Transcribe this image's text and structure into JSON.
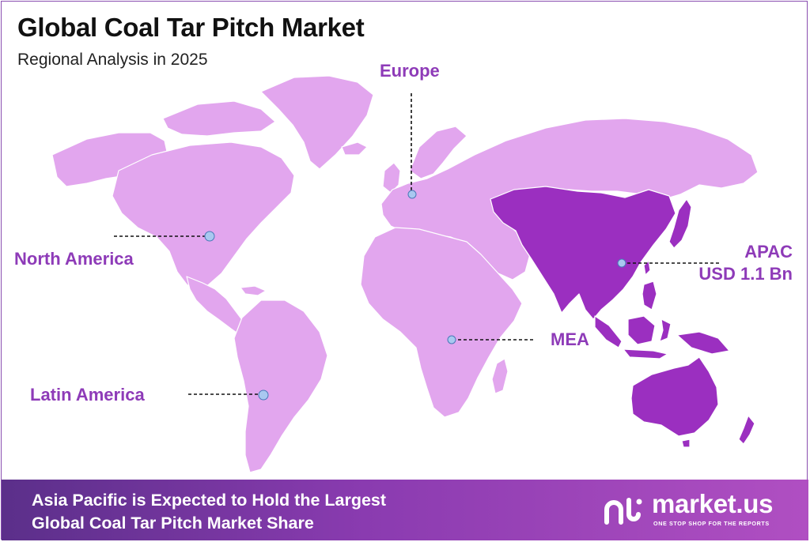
{
  "header": {
    "title": "Global Coal Tar Pitch Market",
    "subtitle": "Regional Analysis in 2025"
  },
  "regions": [
    {
      "id": "north-america",
      "label": "North America",
      "highlighted": false
    },
    {
      "id": "europe",
      "label": "Europe",
      "highlighted": false
    },
    {
      "id": "apac",
      "label": "APAC",
      "value": "USD 1.1 Bn",
      "highlighted": true
    },
    {
      "id": "mea",
      "label": "MEA",
      "highlighted": false
    },
    {
      "id": "latin-america",
      "label": "Latin America",
      "highlighted": false
    }
  ],
  "colors": {
    "land": "#e2a6ee",
    "highlight": "#9b2fc0",
    "label": "#8e3bb8",
    "marker": "#a9c8f0",
    "banner_start": "#5b2f8a",
    "banner_end": "#b04fc2"
  },
  "footer": {
    "line1": "Asia Pacific is Expected to Hold the Largest",
    "line2": "Global Coal Tar Pitch Market Share",
    "brand_name": "market.us",
    "brand_tagline": "ONE STOP SHOP FOR THE REPORTS",
    "brand_icon": "market-us-logo-icon"
  }
}
